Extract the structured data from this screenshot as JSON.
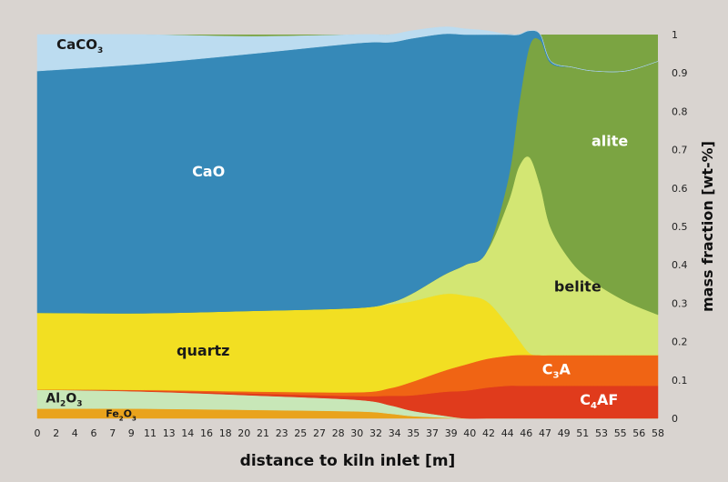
{
  "chart_data": {
    "type": "area",
    "stacking": "stacked",
    "xlabel": "distance to kiln inlet [m]",
    "ylabel": "mass fraction [wt-%]",
    "xlim": [
      0,
      58
    ],
    "ylim": [
      0,
      1
    ],
    "x_tick_labels": [
      "0",
      "2",
      "4",
      "6",
      "7",
      "9",
      "11",
      "13",
      "14",
      "16",
      "18",
      "20",
      "21",
      "23",
      "25",
      "27",
      "28",
      "30",
      "32",
      "34",
      "35",
      "37",
      "39",
      "40",
      "42",
      "44",
      "46",
      "47",
      "49",
      "51",
      "53",
      "55",
      "56",
      "58"
    ],
    "y_ticks": [
      0,
      0.1,
      0.2,
      0.3,
      0.4,
      0.5,
      0.6,
      0.7,
      0.8,
      0.9,
      1
    ],
    "y_tick_labels": [
      "0",
      "0.1",
      "0.2",
      "0.3",
      "0.4",
      "0.5",
      "0.6",
      "0.7",
      "0.8",
      "0.9",
      "1"
    ],
    "grid": false,
    "legend": "labels inside areas",
    "x": [
      0,
      10,
      20,
      30,
      33,
      35,
      38,
      40,
      42,
      44,
      45,
      46,
      47,
      48,
      50,
      52,
      55,
      58
    ],
    "series": [
      {
        "name": "Fe2O3",
        "label_main": "Fe",
        "label_sub1": "2",
        "label_mid": "O",
        "label_sub2": "3",
        "color": "#e9a31c",
        "values": [
          0.025,
          0.025,
          0.022,
          0.018,
          0.012,
          0.006,
          0.002,
          0,
          0,
          0,
          0,
          0,
          0,
          0,
          0,
          0,
          0,
          0
        ]
      },
      {
        "name": "Al2O3",
        "label_main": "Al",
        "label_sub1": "2",
        "label_mid": "O",
        "label_sub2": "3",
        "color": "#c8e7b8",
        "values": [
          0.05,
          0.045,
          0.038,
          0.03,
          0.022,
          0.014,
          0.005,
          0,
          0,
          0,
          0,
          0,
          0,
          0,
          0,
          0,
          0,
          0
        ]
      },
      {
        "name": "C4AF",
        "label_main": "C",
        "label_sub1": "4",
        "label_mid": "AF",
        "color": "#e03b1c",
        "values": [
          0,
          0.002,
          0.005,
          0.01,
          0.025,
          0.04,
          0.062,
          0.072,
          0.08,
          0.085,
          0.085,
          0.085,
          0.085,
          0.085,
          0.085,
          0.085,
          0.085,
          0.085
        ]
      },
      {
        "name": "C3A",
        "label_main": "C",
        "label_sub1": "3",
        "label_mid": "A",
        "color": "#f06414",
        "values": [
          0,
          0.002,
          0.005,
          0.01,
          0.02,
          0.035,
          0.055,
          0.068,
          0.075,
          0.078,
          0.08,
          0.08,
          0.08,
          0.08,
          0.08,
          0.08,
          0.08,
          0.08
        ]
      },
      {
        "name": "quartz",
        "label_main": "quartz",
        "color": "#f2df22",
        "values": [
          0.2,
          0.2,
          0.21,
          0.22,
          0.218,
          0.21,
          0.2,
          0.18,
          0.15,
          0.08,
          0.04,
          0.005,
          0,
          0,
          0,
          0,
          0,
          0
        ]
      },
      {
        "name": "belite",
        "label_main": "belite",
        "color": "#d3e673",
        "values": [
          0,
          0,
          0,
          0,
          0.005,
          0.02,
          0.05,
          0.08,
          0.13,
          0.32,
          0.45,
          0.51,
          0.44,
          0.33,
          0.24,
          0.19,
          0.14,
          0.105
        ]
      },
      {
        "name": "alite",
        "label_main": "alite",
        "color": "#7ba442",
        "values": [
          0,
          0,
          0,
          0,
          0,
          0,
          0,
          0,
          0,
          0.06,
          0.16,
          0.29,
          0.38,
          0.43,
          0.51,
          0.55,
          0.6,
          0.66
        ]
      },
      {
        "name": "CaO",
        "label_main": "CaO",
        "color": "#3689b8",
        "values": [
          0.63,
          0.65,
          0.67,
          0.69,
          0.678,
          0.665,
          0.628,
          0.6,
          0.565,
          0.377,
          0.185,
          0.04,
          0.015,
          0.005,
          0,
          0,
          0,
          0
        ]
      },
      {
        "name": "CaCO3",
        "label_main": "CaCO",
        "label_sub1": "3",
        "color": "#bcdcf0",
        "values": [
          0.095,
          0.076,
          0.045,
          0.022,
          0.02,
          0.02,
          0.018,
          0.015,
          0.01,
          0,
          0,
          0,
          0,
          0,
          0,
          0,
          0,
          0
        ]
      }
    ]
  }
}
